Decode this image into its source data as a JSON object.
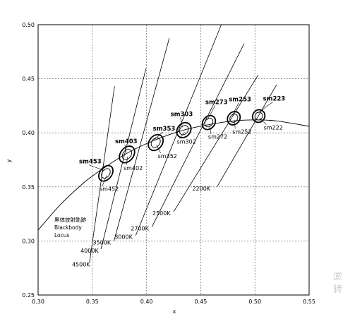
{
  "chart_data": {
    "type": "scatter",
    "title": "",
    "xlabel": "x",
    "ylabel": "y",
    "xlim": [
      0.3,
      0.55
    ],
    "ylim": [
      0.25,
      0.5
    ],
    "x_ticks": [
      "0.30",
      "0.35",
      "0.40",
      "0.45",
      "0.50",
      "0.55"
    ],
    "y_ticks": [
      "0.25",
      "0.30",
      "0.35",
      "0.40",
      "0.45",
      "0.50"
    ],
    "grid": "dashed",
    "locus_label": [
      "黒体放射軌跡",
      "Blackbody",
      "Locus"
    ],
    "blackbody_locus": {
      "x": [
        0.3,
        0.32,
        0.34,
        0.35,
        0.36,
        0.38,
        0.4,
        0.42,
        0.44,
        0.46,
        0.48,
        0.5,
        0.52,
        0.55
      ],
      "y": [
        0.31,
        0.333,
        0.352,
        0.36,
        0.367,
        0.38,
        0.39,
        0.398,
        0.404,
        0.408,
        0.411,
        0.412,
        0.411,
        0.406
      ]
    },
    "ellipse_groups": [
      {
        "outer_label": "sm453",
        "inner_label": "sm452",
        "cx": 0.3625,
        "cy": 0.3625,
        "rx": 0.0055,
        "ry": 0.008
      },
      {
        "outer_label": "sm403",
        "inner_label": "sm402",
        "cx": 0.382,
        "cy": 0.38,
        "rx": 0.006,
        "ry": 0.0085
      },
      {
        "outer_label": "sm353",
        "inner_label": "sm352",
        "cx": 0.4085,
        "cy": 0.391,
        "rx": 0.006,
        "ry": 0.008
      },
      {
        "outer_label": "sm303",
        "inner_label": "sm302",
        "cx": 0.4345,
        "cy": 0.4025,
        "rx": 0.006,
        "ry": 0.0075
      },
      {
        "outer_label": "sm273",
        "inner_label": "sm272",
        "cx": 0.4575,
        "cy": 0.4095,
        "rx": 0.0055,
        "ry": 0.007
      },
      {
        "outer_label": "sm253",
        "inner_label": "sm252",
        "cx": 0.4805,
        "cy": 0.4135,
        "rx": 0.0055,
        "ry": 0.0065
      },
      {
        "outer_label": "sm223",
        "inner_label": "sm222",
        "cx": 0.5035,
        "cy": 0.4155,
        "rx": 0.0055,
        "ry": 0.006
      }
    ],
    "isotemperature_lines": [
      {
        "label": "4500K",
        "x1": 0.3475,
        "y1": 0.2805,
        "x2": 0.3705,
        "y2": 0.443
      },
      {
        "label": "4000K",
        "x1": 0.358,
        "y1": 0.2925,
        "x2": 0.3995,
        "y2": 0.4595
      },
      {
        "label": "3500K",
        "x1": 0.37,
        "y1": 0.3,
        "x2": 0.421,
        "y2": 0.4875
      },
      {
        "label": "3000K",
        "x1": 0.39,
        "y1": 0.305,
        "x2": 0.469,
        "y2": 0.5
      },
      {
        "label": "2700K",
        "x1": 0.405,
        "y1": 0.313,
        "x2": 0.49,
        "y2": 0.4825
      },
      {
        "label": "2500K",
        "x1": 0.425,
        "y1": 0.327,
        "x2": 0.503,
        "y2": 0.4535
      },
      {
        "label": "2200K",
        "x1": 0.465,
        "y1": 0.35,
        "x2": 0.52,
        "y2": 0.4445
      }
    ],
    "cct_labels": [
      "4500K",
      "4000K",
      "3500K",
      "3000K",
      "2700K",
      "2500K",
      "2200K"
    ]
  },
  "watermark": [
    "淤",
    "转"
  ]
}
